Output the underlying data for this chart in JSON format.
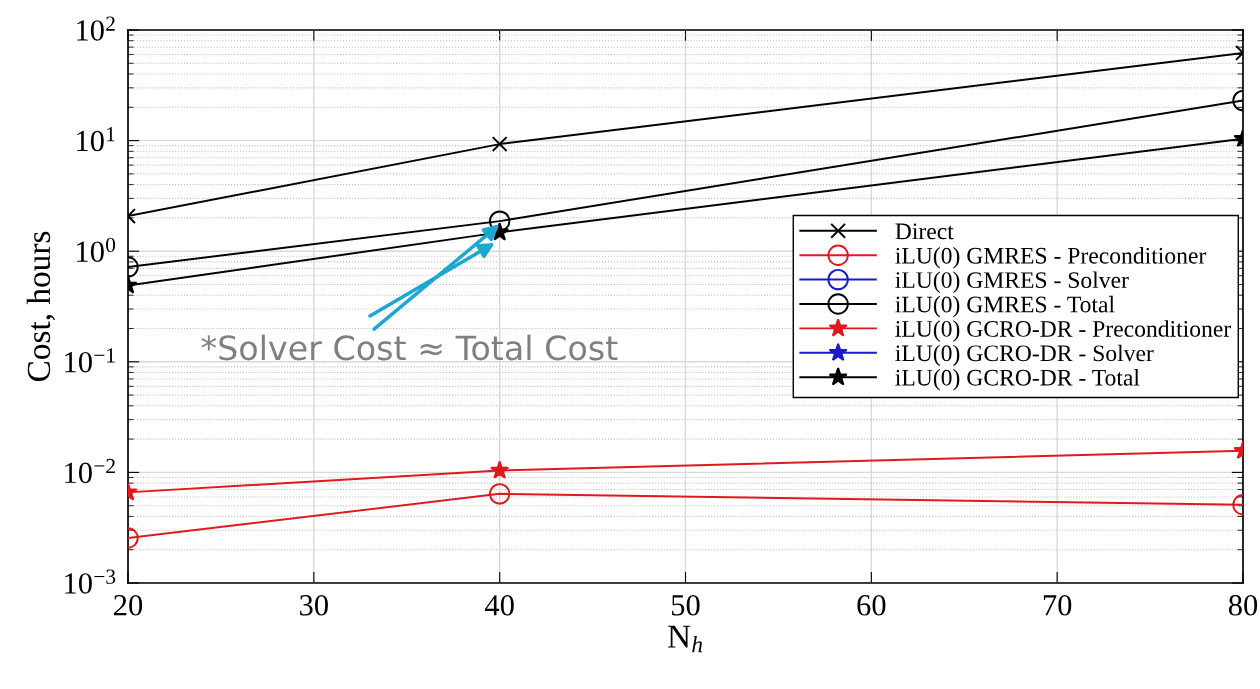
{
  "chart_data": {
    "type": "line",
    "xlabel": "N$_{h}$",
    "ylabel": "Cost, hours",
    "x": [
      20,
      40,
      80
    ],
    "series": [
      {
        "name": "Direct",
        "color": "#000000",
        "marker": "cross",
        "values": [
          2.08,
          9.3,
          62
        ]
      },
      {
        "name": "iLU(0) GMRES - Preconditioner",
        "color": "#e0191f",
        "marker": "circle",
        "values": [
          0.00255,
          0.0064,
          0.0051
        ]
      },
      {
        "name": "iLU(0) GMRES - Solver",
        "color": "#1a1acc",
        "marker": "circle",
        "values": [
          null,
          null,
          null
        ]
      },
      {
        "name": "iLU(0) GMRES - Total",
        "color": "#000000",
        "marker": "circle",
        "values": [
          0.72,
          1.87,
          23
        ]
      },
      {
        "name": "iLU(0) GCRO-DR - Preconditioner",
        "color": "#e0191f",
        "marker": "star",
        "values": [
          0.0066,
          0.0104,
          0.0157
        ]
      },
      {
        "name": "iLU(0) GCRO-DR - Solver",
        "color": "#1a1acc",
        "marker": "star",
        "values": [
          null,
          null,
          null
        ]
      },
      {
        "name": "iLU(0) GCRO-DR - Total",
        "color": "#000000",
        "marker": "star",
        "values": [
          0.49,
          1.48,
          10.4
        ]
      }
    ],
    "log": "y",
    "xlim": [
      20,
      80
    ],
    "xticks": [
      20,
      30,
      40,
      50,
      60,
      70,
      80
    ],
    "ylim": [
      0.001,
      100
    ],
    "yticks": [
      {
        "value": 0.001,
        "label": "10$^{−3}$"
      },
      {
        "value": 0.01,
        "label": "10$^{−2}$"
      },
      {
        "value": 0.1,
        "label": "10$^{−1}$"
      },
      {
        "value": 1,
        "label": "10$^{0}$"
      },
      {
        "value": 10,
        "label": "10$^{1}$"
      },
      {
        "value": 100,
        "label": "10$^{2}$"
      }
    ],
    "grid": true,
    "legend": "center right",
    "line_style": "solid",
    "annotations": [
      {
        "text": "*Solver Cost ≈ Total Cost",
        "x": 40,
        "y": 1.75
      }
    ]
  }
}
